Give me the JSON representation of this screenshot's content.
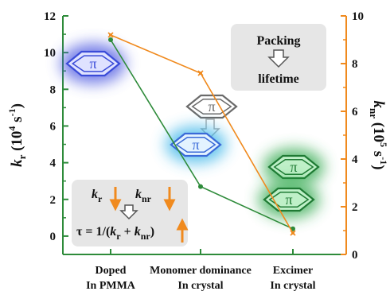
{
  "chart_data": {
    "type": "line",
    "categories": [
      [
        "Doped",
        "In PMMA"
      ],
      [
        "Monomer dominance",
        "In crystal"
      ],
      [
        "Excimer",
        "In crystal"
      ]
    ],
    "series": [
      {
        "axis": "left",
        "color": "#2e8b3a",
        "values": [
          10.7,
          2.7,
          0.4
        ]
      },
      {
        "axis": "right",
        "color": "#f08a1e",
        "values": [
          9.2,
          7.6,
          0.9
        ]
      }
    ],
    "y_left": {
      "label_parts": [
        "k",
        "r",
        " (10",
        "4",
        " s",
        "-1",
        ")"
      ],
      "ylim": [
        -1,
        12
      ],
      "ticks": [
        0,
        2,
        4,
        6,
        8,
        10,
        12
      ],
      "color": "#2e8b3a"
    },
    "y_right": {
      "label_parts": [
        "k",
        "nr",
        " (10",
        "5",
        " s",
        "-1",
        ")"
      ],
      "ylim": [
        0,
        10
      ],
      "ticks": [
        0,
        2,
        4,
        6,
        8,
        10
      ],
      "color": "#f08a1e"
    },
    "grid": false
  },
  "annotations": {
    "packing_box": {
      "line1": "Packing",
      "line2": "lifetime"
    },
    "formula_box": {
      "kr": {
        "base": "k",
        "sub": "r"
      },
      "knr": {
        "base": "k",
        "sub": "nr"
      },
      "tau_parts": [
        "τ = 1/(",
        "k",
        "r",
        " + ",
        "k",
        "nr",
        ")"
      ]
    },
    "pi_symbol": "π"
  },
  "colors": {
    "blue": "#3a4bd8",
    "cyan_glow": "#39b4e8",
    "green_glow": "#2ea84b",
    "gray_box": "#e6e6e6",
    "arrow_orange": "#f08a1e"
  }
}
